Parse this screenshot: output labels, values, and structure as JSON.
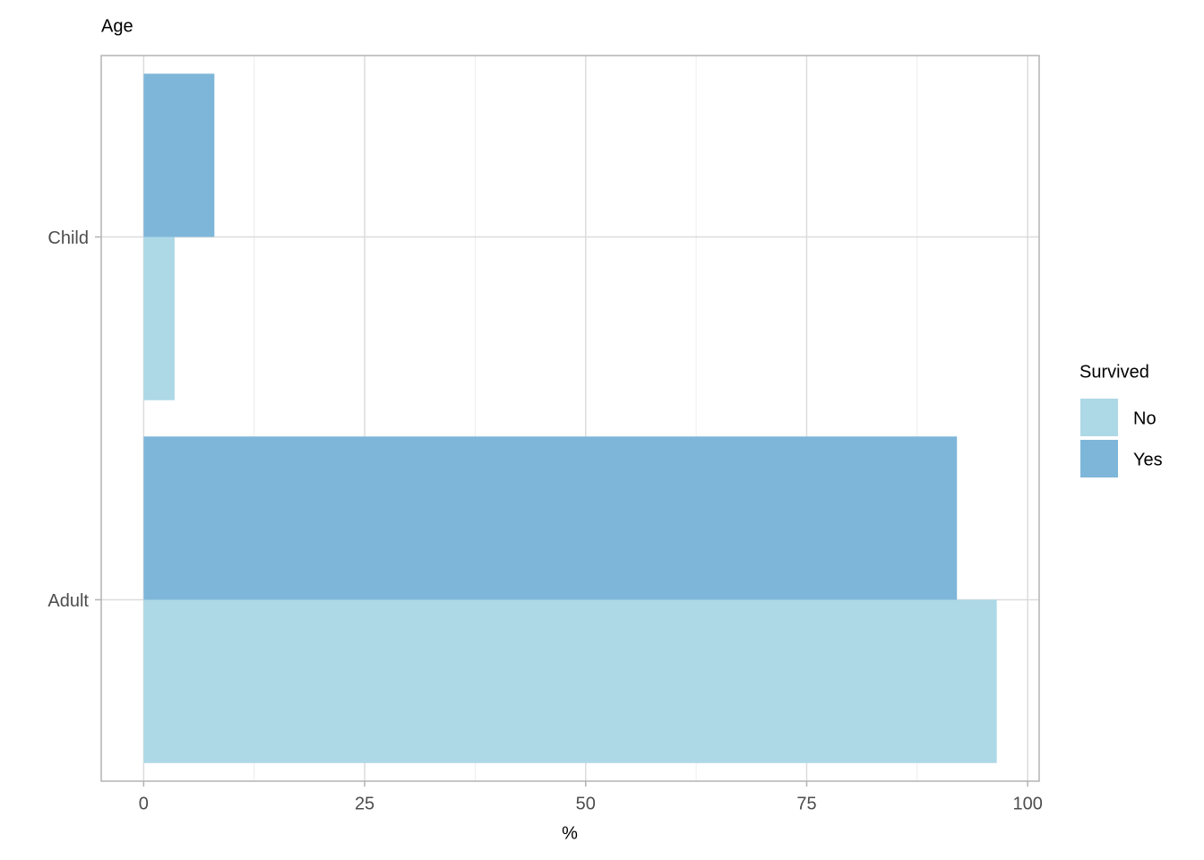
{
  "chart_data": {
    "type": "bar",
    "orientation": "horizontal",
    "title": "Age",
    "x_label": "%",
    "categories": [
      "Adult",
      "Child"
    ],
    "series": [
      {
        "name": "No",
        "color": "#add8e6",
        "values": [
          96.5,
          3.5
        ]
      },
      {
        "name": "Yes",
        "color": "#7eb6d9",
        "values": [
          92.0,
          8.0
        ]
      }
    ],
    "xlim": [
      -4.8,
      101.3
    ],
    "xticks": [
      0,
      25,
      50,
      75,
      100
    ],
    "grid": true,
    "legend_title": "Survived",
    "legend_position": "right"
  }
}
